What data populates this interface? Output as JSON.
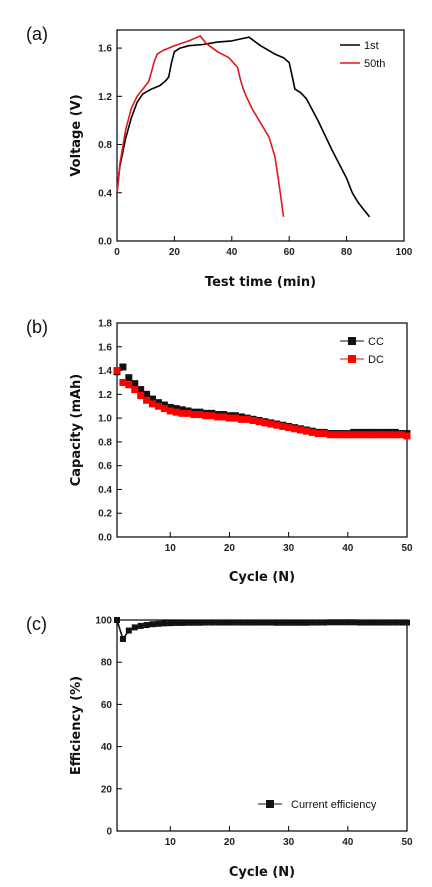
{
  "chart_data": [
    {
      "panel_label": "(a)",
      "type": "line",
      "xlabel": "Test time (min)",
      "ylabel": "Voltage (V)",
      "xlim": [
        0,
        100
      ],
      "ylim": [
        0,
        1.75
      ],
      "xticks": [
        0,
        20,
        40,
        60,
        80,
        100
      ],
      "yticks": [
        0.0,
        0.4,
        0.8,
        1.2,
        1.6
      ],
      "ytick_decimals": 1,
      "legend": "top-right",
      "series": [
        {
          "name": "1st",
          "color": "#000000",
          "x": [
            0,
            1,
            3,
            5,
            7,
            9,
            12,
            15,
            17,
            18,
            19,
            20,
            22,
            25,
            30,
            35,
            40,
            44,
            46,
            50,
            55,
            58,
            60,
            61,
            62,
            64,
            66,
            70,
            75,
            80,
            82,
            84,
            86,
            88
          ],
          "y": [
            0.4,
            0.62,
            0.85,
            1.02,
            1.15,
            1.22,
            1.26,
            1.29,
            1.33,
            1.36,
            1.48,
            1.57,
            1.6,
            1.62,
            1.63,
            1.65,
            1.66,
            1.68,
            1.69,
            1.62,
            1.55,
            1.52,
            1.48,
            1.37,
            1.26,
            1.23,
            1.18,
            1.0,
            0.75,
            0.52,
            0.4,
            0.32,
            0.26,
            0.2
          ]
        },
        {
          "name": "50th",
          "color": "#e0191c",
          "x": [
            0,
            1,
            3,
            5,
            7,
            9,
            11,
            12,
            13,
            14,
            16,
            20,
            25,
            28,
            29,
            31,
            35,
            39,
            42,
            43,
            44,
            45,
            47,
            50,
            53,
            55,
            56,
            57,
            58
          ],
          "y": [
            0.4,
            0.64,
            0.92,
            1.1,
            1.2,
            1.26,
            1.32,
            1.4,
            1.49,
            1.55,
            1.58,
            1.62,
            1.66,
            1.69,
            1.7,
            1.64,
            1.57,
            1.52,
            1.44,
            1.34,
            1.26,
            1.2,
            1.1,
            0.98,
            0.86,
            0.7,
            0.55,
            0.38,
            0.2
          ]
        }
      ]
    },
    {
      "panel_label": "(b)",
      "type": "scatter",
      "xlabel": "Cycle (N)",
      "ylabel": "Capacity (mAh)",
      "xlim": [
        1,
        50
      ],
      "ylim": [
        0,
        1.8
      ],
      "xticks": [
        10,
        20,
        30,
        40,
        50
      ],
      "yticks": [
        0.0,
        0.2,
        0.4,
        0.6,
        0.8,
        1.0,
        1.2,
        1.4,
        1.6,
        1.8
      ],
      "ytick_decimals": 1,
      "legend": "top-right",
      "x": [
        1,
        2,
        3,
        4,
        5,
        6,
        7,
        8,
        9,
        10,
        11,
        12,
        13,
        14,
        15,
        16,
        17,
        18,
        19,
        20,
        21,
        22,
        23,
        24,
        25,
        26,
        27,
        28,
        29,
        30,
        31,
        32,
        33,
        34,
        35,
        36,
        37,
        38,
        39,
        40,
        41,
        42,
        43,
        44,
        45,
        46,
        47,
        48,
        49,
        50
      ],
      "series": [
        {
          "name": "CC",
          "color": "#111111",
          "values": [
            1.39,
            1.43,
            1.34,
            1.29,
            1.24,
            1.2,
            1.16,
            1.13,
            1.11,
            1.09,
            1.08,
            1.07,
            1.06,
            1.05,
            1.05,
            1.04,
            1.04,
            1.03,
            1.03,
            1.02,
            1.02,
            1.01,
            1.0,
            0.99,
            0.98,
            0.97,
            0.96,
            0.95,
            0.94,
            0.93,
            0.92,
            0.91,
            0.9,
            0.89,
            0.88,
            0.88,
            0.87,
            0.87,
            0.87,
            0.87,
            0.88,
            0.88,
            0.88,
            0.88,
            0.88,
            0.88,
            0.88,
            0.88,
            0.87,
            0.87
          ]
        },
        {
          "name": "DC",
          "color": "#ff0000",
          "values": [
            1.4,
            1.3,
            1.28,
            1.24,
            1.19,
            1.15,
            1.12,
            1.1,
            1.08,
            1.06,
            1.05,
            1.04,
            1.04,
            1.03,
            1.03,
            1.02,
            1.02,
            1.01,
            1.01,
            1.0,
            1.0,
            0.99,
            0.99,
            0.98,
            0.97,
            0.96,
            0.95,
            0.94,
            0.93,
            0.92,
            0.91,
            0.9,
            0.89,
            0.88,
            0.87,
            0.87,
            0.86,
            0.86,
            0.86,
            0.86,
            0.86,
            0.86,
            0.86,
            0.86,
            0.86,
            0.86,
            0.86,
            0.86,
            0.86,
            0.85
          ]
        }
      ]
    },
    {
      "panel_label": "(c)",
      "type": "line",
      "xlabel": "Cycle (N)",
      "ylabel": "Efficiency (%)",
      "xlim": [
        1,
        50
      ],
      "ylim": [
        0,
        100
      ],
      "xticks": [
        10,
        20,
        30,
        40,
        50
      ],
      "yticks": [
        0,
        20,
        40,
        60,
        80,
        100
      ],
      "ytick_decimals": 0,
      "legend": "bottom-right",
      "x": [
        1,
        2,
        3,
        4,
        5,
        6,
        7,
        8,
        9,
        10,
        11,
        12,
        13,
        14,
        15,
        16,
        17,
        18,
        19,
        20,
        21,
        22,
        23,
        24,
        25,
        26,
        27,
        28,
        29,
        30,
        31,
        32,
        33,
        34,
        35,
        36,
        37,
        38,
        39,
        40,
        41,
        42,
        43,
        44,
        45,
        46,
        47,
        48,
        49,
        50
      ],
      "series": [
        {
          "name": "Current efficiency",
          "color": "#111111",
          "values": [
            100,
            91,
            95,
            96.5,
            97.2,
            97.6,
            98,
            98.2,
            98.4,
            98.5,
            98.6,
            98.6,
            98.7,
            98.7,
            98.7,
            98.8,
            98.8,
            98.8,
            98.8,
            98.8,
            98.8,
            98.8,
            98.8,
            98.8,
            98.8,
            98.8,
            98.8,
            98.7,
            98.7,
            98.7,
            98.7,
            98.7,
            98.7,
            98.8,
            98.8,
            98.8,
            98.9,
            98.9,
            98.9,
            98.9,
            98.9,
            98.8,
            98.8,
            98.8,
            98.8,
            98.8,
            98.8,
            98.8,
            98.8,
            98.8
          ]
        }
      ]
    }
  ]
}
